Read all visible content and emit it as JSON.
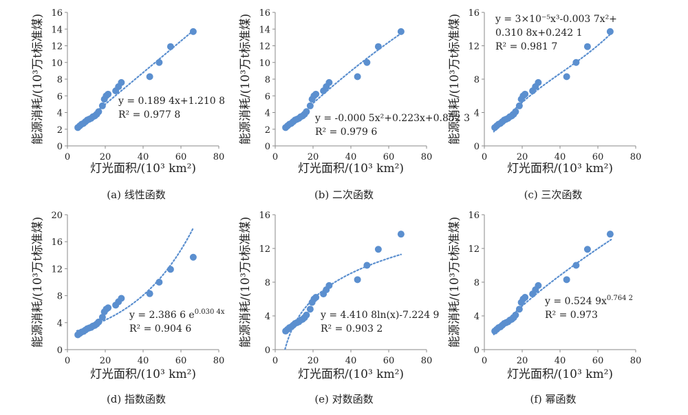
{
  "figure": {
    "x_label": "灯光面积/(10³ km²)",
    "y_label": "能源消耗/(10³万t标准煤)"
  },
  "chart_data": [
    {
      "type": "scatter",
      "panel": "a",
      "caption": "(a) 线性函数",
      "x": [
        5.5,
        6.5,
        7.5,
        8.5,
        9.5,
        10.5,
        11.5,
        12.5,
        13.5,
        14.5,
        15.5,
        16.5,
        18.5,
        19.5,
        20.5,
        21.5,
        25.5,
        27,
        28.5,
        43.5,
        48.5,
        54.5,
        66.5
      ],
      "y": [
        2.2,
        2.4,
        2.6,
        2.7,
        2.9,
        3.1,
        3.2,
        3.3,
        3.5,
        3.6,
        3.8,
        4.1,
        4.8,
        5.6,
        6.0,
        6.2,
        6.6,
        7.1,
        7.6,
        8.3,
        10.0,
        11.9,
        13.7
      ],
      "trend": "linear",
      "equation": [
        "y = 0.189 4x+1.210 8",
        "R² = 0.977 8"
      ],
      "xlim": [
        0,
        80
      ],
      "ylim": [
        0,
        16
      ],
      "xticks": [
        "0",
        "20",
        "40",
        "60",
        "80"
      ],
      "yticks": [
        "0",
        "2",
        "4",
        "6",
        "8",
        "10",
        "12",
        "14",
        "16"
      ],
      "color": "#5b8fcf"
    },
    {
      "type": "scatter",
      "panel": "b",
      "caption": "(b) 二次函数",
      "x": [
        5.5,
        6.5,
        7.5,
        8.5,
        9.5,
        10.5,
        11.5,
        12.5,
        13.5,
        14.5,
        15.5,
        16.5,
        18.5,
        19.5,
        20.5,
        21.5,
        25.5,
        27,
        28.5,
        43.5,
        48.5,
        54.5,
        66.5
      ],
      "y": [
        2.2,
        2.4,
        2.6,
        2.7,
        2.9,
        3.1,
        3.2,
        3.3,
        3.5,
        3.6,
        3.8,
        4.1,
        4.8,
        5.6,
        6.0,
        6.2,
        6.6,
        7.1,
        7.6,
        8.3,
        10.0,
        11.9,
        13.7
      ],
      "trend": "quadratic",
      "equation": [
        "y = -0.000 5x²+0.223x+0.852 3",
        "R² = 0.979 6"
      ],
      "xlim": [
        0,
        80
      ],
      "ylim": [
        0,
        16
      ],
      "xticks": [
        "0",
        "20",
        "40",
        "60",
        "80"
      ],
      "yticks": [
        "0",
        "2",
        "4",
        "6",
        "8",
        "10",
        "12",
        "14",
        "16"
      ],
      "color": "#5b8fcf"
    },
    {
      "type": "scatter",
      "panel": "c",
      "caption": "(c) 三次函数",
      "x": [
        5.5,
        6.5,
        7.5,
        8.5,
        9.5,
        10.5,
        11.5,
        12.5,
        13.5,
        14.5,
        15.5,
        16.5,
        18.5,
        19.5,
        20.5,
        21.5,
        25.5,
        27,
        28.5,
        43.5,
        48.5,
        54.5,
        66.5
      ],
      "y": [
        2.2,
        2.4,
        2.6,
        2.7,
        2.9,
        3.1,
        3.2,
        3.3,
        3.5,
        3.6,
        3.8,
        4.1,
        4.8,
        5.6,
        6.0,
        6.2,
        6.6,
        7.1,
        7.6,
        8.3,
        10.0,
        11.9,
        13.7
      ],
      "trend": "cubic",
      "equation": [
        "y = 3×10⁻⁵x³-0.003 7x²+",
        "0.310 8x+0.242 1",
        "R² = 0.981 7"
      ],
      "xlim": [
        0,
        80
      ],
      "ylim": [
        0,
        16
      ],
      "xticks": [
        "0",
        "20",
        "40",
        "60",
        "80"
      ],
      "yticks": [
        "0",
        "4",
        "8",
        "12",
        "16"
      ],
      "color": "#5b8fcf"
    },
    {
      "type": "scatter",
      "panel": "d",
      "caption": "(d) 指数函数",
      "x": [
        5.5,
        6.5,
        7.5,
        8.5,
        9.5,
        10.5,
        11.5,
        12.5,
        13.5,
        14.5,
        15.5,
        16.5,
        18.5,
        19.5,
        20.5,
        21.5,
        25.5,
        27,
        28.5,
        43.5,
        48.5,
        54.5,
        66.5
      ],
      "y": [
        2.2,
        2.4,
        2.6,
        2.7,
        2.9,
        3.1,
        3.2,
        3.3,
        3.5,
        3.6,
        3.8,
        4.1,
        4.8,
        5.6,
        6.0,
        6.2,
        6.6,
        7.1,
        7.6,
        8.3,
        10.0,
        11.9,
        13.7
      ],
      "trend": "exponential",
      "equation": [
        "y = 2.386 6 e^0.030 4x",
        "R² = 0.904 6"
      ],
      "xlim": [
        0,
        80
      ],
      "ylim": [
        0,
        20
      ],
      "xticks": [
        "0",
        "20",
        "40",
        "60",
        "80"
      ],
      "yticks": [
        "0",
        "4",
        "8",
        "12",
        "16",
        "20"
      ],
      "color": "#5b8fcf"
    },
    {
      "type": "scatter",
      "panel": "e",
      "caption": "(e) 对数函数",
      "x": [
        5.5,
        6.5,
        7.5,
        8.5,
        9.5,
        10.5,
        11.5,
        12.5,
        13.5,
        14.5,
        15.5,
        16.5,
        18.5,
        19.5,
        20.5,
        21.5,
        25.5,
        27,
        28.5,
        43.5,
        48.5,
        54.5,
        66.5
      ],
      "y": [
        2.2,
        2.4,
        2.6,
        2.7,
        2.9,
        3.1,
        3.2,
        3.3,
        3.5,
        3.6,
        3.8,
        4.1,
        4.8,
        5.6,
        6.0,
        6.2,
        6.6,
        7.1,
        7.6,
        8.3,
        10.0,
        11.9,
        13.7
      ],
      "trend": "logarithmic",
      "equation": [
        "y = 4.410 8ln(x)-7.224 9",
        "R² = 0.903 2"
      ],
      "xlim": [
        0,
        80
      ],
      "ylim": [
        0,
        16
      ],
      "xticks": [
        "0",
        "20",
        "40",
        "60",
        "80"
      ],
      "yticks": [
        "0",
        "4",
        "8",
        "12",
        "16"
      ],
      "color": "#5b8fcf"
    },
    {
      "type": "scatter",
      "panel": "f",
      "caption": "(f) 幂函数",
      "x": [
        5.5,
        6.5,
        7.5,
        8.5,
        9.5,
        10.5,
        11.5,
        12.5,
        13.5,
        14.5,
        15.5,
        16.5,
        18.5,
        19.5,
        20.5,
        21.5,
        25.5,
        27,
        28.5,
        43.5,
        48.5,
        54.5,
        66.5
      ],
      "y": [
        2.2,
        2.4,
        2.6,
        2.7,
        2.9,
        3.1,
        3.2,
        3.3,
        3.5,
        3.6,
        3.8,
        4.1,
        4.8,
        5.6,
        6.0,
        6.2,
        6.6,
        7.1,
        7.6,
        8.3,
        10.0,
        11.9,
        13.7
      ],
      "trend": "power",
      "equation": [
        "y = 0.524 9x^0.764 2",
        "R² = 0.973"
      ],
      "xlim": [
        0,
        80
      ],
      "ylim": [
        0,
        16
      ],
      "xticks": [
        "0",
        "20",
        "40",
        "60",
        "80"
      ],
      "yticks": [
        "0",
        "4",
        "8",
        "12",
        "16"
      ],
      "color": "#5b8fcf"
    }
  ]
}
